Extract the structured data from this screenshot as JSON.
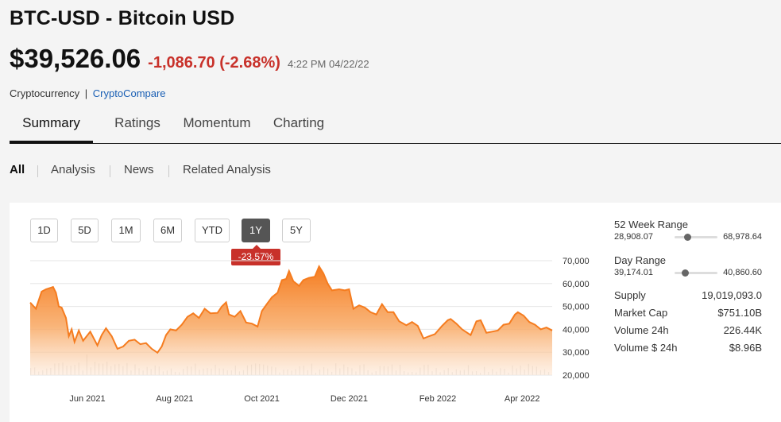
{
  "header": {
    "title": "BTC-USD - Bitcoin USD",
    "price": "$39,526.06",
    "change": "-1,086.70 (-2.68%)",
    "timestamp": "4:22 PM 04/22/22",
    "category": "Cryptocurrency",
    "separator": "|",
    "source": "CryptoCompare"
  },
  "tabs": [
    {
      "label": "Summary"
    },
    {
      "label": "Ratings"
    },
    {
      "label": "Momentum"
    },
    {
      "label": "Charting"
    }
  ],
  "subtabs": [
    {
      "label": "All"
    },
    {
      "label": "Analysis"
    },
    {
      "label": "News"
    },
    {
      "label": "Related Analysis"
    }
  ],
  "range_buttons": [
    {
      "label": "1D"
    },
    {
      "label": "5D"
    },
    {
      "label": "1M"
    },
    {
      "label": "6M"
    },
    {
      "label": "YTD"
    },
    {
      "label": "1Y"
    },
    {
      "label": "5Y"
    }
  ],
  "selected_range": "1Y",
  "change_badge": "-23.57%",
  "chart_data": {
    "type": "area",
    "series_color": "#f57c1f",
    "x_tick_labels": [
      "Jun 2021",
      "Aug 2021",
      "Oct 2021",
      "Dec 2021",
      "Feb 2022",
      "Apr 2022"
    ],
    "y_tick_labels": [
      "70,000",
      "60,000",
      "50,000",
      "40,000",
      "30,000",
      "20,000"
    ],
    "ylim": [
      20000,
      70000
    ],
    "y_ticks": [
      70000,
      60000,
      50000,
      40000,
      30000,
      20000
    ],
    "x_range": [
      "2021-04-22",
      "2022-04-22"
    ],
    "x_ticks": [
      "2021-06-01",
      "2021-08-01",
      "2021-10-01",
      "2021-12-01",
      "2022-02-01",
      "2022-04-01"
    ],
    "grid": true,
    "points": [
      [
        "2021-04-22",
        51700
      ],
      [
        "2021-04-26",
        49000
      ],
      [
        "2021-04-30",
        56500
      ],
      [
        "2021-05-03",
        57500
      ],
      [
        "2021-05-08",
        58500
      ],
      [
        "2021-05-10",
        56000
      ],
      [
        "2021-05-12",
        50000
      ],
      [
        "2021-05-14",
        49500
      ],
      [
        "2021-05-17",
        45000
      ],
      [
        "2021-05-19",
        37000
      ],
      [
        "2021-05-21",
        40000
      ],
      [
        "2021-05-23",
        34500
      ],
      [
        "2021-05-26",
        39500
      ],
      [
        "2021-05-29",
        35000
      ],
      [
        "2021-06-03",
        39000
      ],
      [
        "2021-06-08",
        33000
      ],
      [
        "2021-06-11",
        37500
      ],
      [
        "2021-06-14",
        40500
      ],
      [
        "2021-06-18",
        37000
      ],
      [
        "2021-06-22",
        31500
      ],
      [
        "2021-06-26",
        32500
      ],
      [
        "2021-06-30",
        35000
      ],
      [
        "2021-07-04",
        35500
      ],
      [
        "2021-07-08",
        33500
      ],
      [
        "2021-07-12",
        34000
      ],
      [
        "2021-07-16",
        31500
      ],
      [
        "2021-07-20",
        29800
      ],
      [
        "2021-07-23",
        32500
      ],
      [
        "2021-07-26",
        37500
      ],
      [
        "2021-07-29",
        40000
      ],
      [
        "2021-08-02",
        39500
      ],
      [
        "2021-08-06",
        42000
      ],
      [
        "2021-08-10",
        45500
      ],
      [
        "2021-08-14",
        47000
      ],
      [
        "2021-08-18",
        45000
      ],
      [
        "2021-08-22",
        49000
      ],
      [
        "2021-08-26",
        47000
      ],
      [
        "2021-08-31",
        47200
      ],
      [
        "2021-09-03",
        50000
      ],
      [
        "2021-09-06",
        51800
      ],
      [
        "2021-09-08",
        46500
      ],
      [
        "2021-09-12",
        45500
      ],
      [
        "2021-09-16",
        48000
      ],
      [
        "2021-09-20",
        43000
      ],
      [
        "2021-09-24",
        42500
      ],
      [
        "2021-09-28",
        41200
      ],
      [
        "2021-10-01",
        48000
      ],
      [
        "2021-10-05",
        51500
      ],
      [
        "2021-10-08",
        54000
      ],
      [
        "2021-10-12",
        56000
      ],
      [
        "2021-10-15",
        61500
      ],
      [
        "2021-10-18",
        62000
      ],
      [
        "2021-10-20",
        65500
      ],
      [
        "2021-10-23",
        61000
      ],
      [
        "2021-10-27",
        59000
      ],
      [
        "2021-10-30",
        61500
      ],
      [
        "2021-11-03",
        62500
      ],
      [
        "2021-11-07",
        63000
      ],
      [
        "2021-11-10",
        67500
      ],
      [
        "2021-11-13",
        64500
      ],
      [
        "2021-11-16",
        60000
      ],
      [
        "2021-11-19",
        57000
      ],
      [
        "2021-11-24",
        57500
      ],
      [
        "2021-11-28",
        57000
      ],
      [
        "2021-12-01",
        57500
      ],
      [
        "2021-12-04",
        49000
      ],
      [
        "2021-12-08",
        50500
      ],
      [
        "2021-12-12",
        49500
      ],
      [
        "2021-12-16",
        47500
      ],
      [
        "2021-12-20",
        46500
      ],
      [
        "2021-12-24",
        51000
      ],
      [
        "2021-12-28",
        47500
      ],
      [
        "2022-01-01",
        47500
      ],
      [
        "2022-01-05",
        43500
      ],
      [
        "2022-01-10",
        41800
      ],
      [
        "2022-01-14",
        43200
      ],
      [
        "2022-01-18",
        41500
      ],
      [
        "2022-01-22",
        36000
      ],
      [
        "2022-01-26",
        37000
      ],
      [
        "2022-01-30",
        37900
      ],
      [
        "2022-02-04",
        41500
      ],
      [
        "2022-02-08",
        44000
      ],
      [
        "2022-02-10",
        44500
      ],
      [
        "2022-02-14",
        42500
      ],
      [
        "2022-02-18",
        40000
      ],
      [
        "2022-02-24",
        37500
      ],
      [
        "2022-02-28",
        43500
      ],
      [
        "2022-03-03",
        44000
      ],
      [
        "2022-03-07",
        38500
      ],
      [
        "2022-03-11",
        39000
      ],
      [
        "2022-03-15",
        39500
      ],
      [
        "2022-03-19",
        42000
      ],
      [
        "2022-03-23",
        42500
      ],
      [
        "2022-03-27",
        46500
      ],
      [
        "2022-03-29",
        47500
      ],
      [
        "2022-04-02",
        46000
      ],
      [
        "2022-04-06",
        43200
      ],
      [
        "2022-04-10",
        42000
      ],
      [
        "2022-04-14",
        40000
      ],
      [
        "2022-04-18",
        40800
      ],
      [
        "2022-04-22",
        39526
      ]
    ]
  },
  "stats": {
    "week52": {
      "title": "52 Week Range",
      "low": "28,908.07",
      "high": "68,978.64",
      "position": 0.265
    },
    "day": {
      "title": "Day Range",
      "low": "39,174.01",
      "high": "40,860.60",
      "position": 0.21
    },
    "rows": [
      {
        "label": "Supply",
        "value": "19,019,093.0"
      },
      {
        "label": "Market Cap",
        "value": "$751.10B"
      },
      {
        "label": "Volume 24h",
        "value": "226.44K"
      },
      {
        "label": "Volume $ 24h",
        "value": "$8.96B"
      }
    ]
  }
}
